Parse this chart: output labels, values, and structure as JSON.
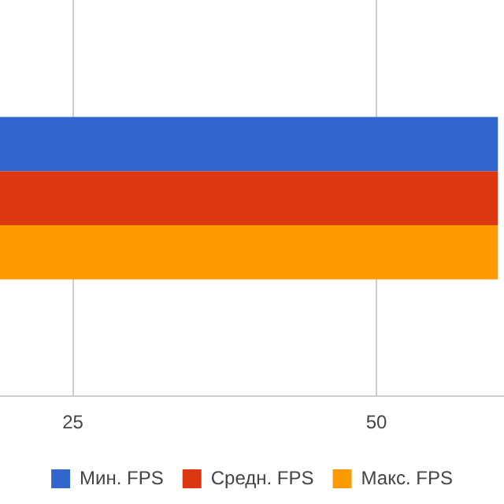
{
  "chart_data": {
    "type": "bar",
    "orientation": "horizontal",
    "categories": [
      null
    ],
    "series": [
      {
        "name": "Мин. FPS",
        "color": "#3366cc",
        "values": [
          60
        ]
      },
      {
        "name": "Средн. FPS",
        "color": "#dc3912",
        "values": [
          60
        ]
      },
      {
        "name": "Макс. FPS",
        "color": "#ff9900",
        "values": [
          60
        ]
      }
    ],
    "xlim": [
      19,
      60.5
    ],
    "xticks": [
      25,
      50
    ],
    "grid": "x",
    "legend": "bottom"
  }
}
